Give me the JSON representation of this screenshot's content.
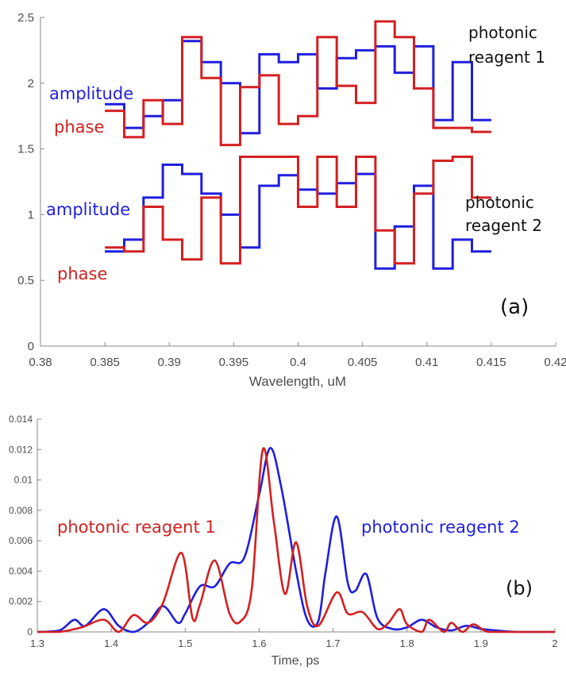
{
  "chart_data": [
    {
      "type": "line",
      "panel_label": "(a)",
      "xlabel": "Wavelength, uM",
      "ylabel": "",
      "xlim": [
        0.38,
        0.42
      ],
      "ylim": [
        0,
        2.5
      ],
      "x_ticks": [
        "0.38",
        "0.385",
        "0.39",
        "0.395",
        "0.4",
        "0.405",
        "0.41",
        "0.415",
        "0.42"
      ],
      "y_ticks": [
        "0",
        "0.5",
        "1",
        "1.5",
        "2",
        "2.5"
      ],
      "grid": false,
      "step_edges": [
        0.385,
        0.3865,
        0.388,
        0.3895,
        0.391,
        0.3925,
        0.394,
        0.3955,
        0.397,
        0.3985,
        0.4,
        0.4015,
        0.403,
        0.4045,
        0.406,
        0.4075,
        0.409,
        0.4105,
        0.412,
        0.4135,
        0.415
      ],
      "series": [
        {
          "group": "photonic reagent 1",
          "quantity": "amplitude",
          "color": "#1f1fdd",
          "values": [
            1.84,
            1.66,
            1.75,
            1.87,
            2.32,
            2.16,
            2.0,
            1.62,
            2.22,
            2.16,
            2.22,
            1.96,
            2.19,
            2.25,
            2.28,
            2.08,
            2.28,
            1.72,
            2.16,
            1.72
          ]
        },
        {
          "group": "photonic reagent 1",
          "quantity": "phase",
          "color": "#d42020",
          "values": [
            1.79,
            1.59,
            1.87,
            1.69,
            2.35,
            2.04,
            1.53,
            1.97,
            2.06,
            1.69,
            1.75,
            2.35,
            1.98,
            1.85,
            2.47,
            2.35,
            1.96,
            1.66,
            1.66,
            1.63
          ]
        },
        {
          "group": "photonic reagent 2",
          "quantity": "amplitude",
          "color": "#1f1fdd",
          "values": [
            0.72,
            0.81,
            1.13,
            1.38,
            1.31,
            1.16,
            1.0,
            0.75,
            1.22,
            1.3,
            1.19,
            1.16,
            1.24,
            1.31,
            0.59,
            0.91,
            1.22,
            0.59,
            0.81,
            0.72
          ]
        },
        {
          "group": "photonic reagent 2",
          "quantity": "phase",
          "color": "#d42020",
          "values": [
            0.75,
            0.72,
            1.06,
            0.81,
            0.66,
            1.13,
            0.63,
            1.44,
            1.44,
            1.44,
            1.06,
            1.44,
            1.06,
            1.44,
            0.88,
            0.63,
            1.16,
            1.41,
            1.44,
            1.13
          ]
        }
      ],
      "annotations": [
        {
          "text": "amplitude",
          "color": "#1f1fdd"
        },
        {
          "text": "phase",
          "color": "#d42020"
        },
        {
          "text": "photonic",
          "color": "#111111"
        },
        {
          "text": "reagent 1",
          "color": "#111111"
        },
        {
          "text": "amplitude",
          "color": "#1f1fdd"
        },
        {
          "text": "phase",
          "color": "#d42020"
        },
        {
          "text": "photonic",
          "color": "#111111"
        },
        {
          "text": "reagent 2",
          "color": "#111111"
        }
      ]
    },
    {
      "type": "line",
      "panel_label": "(b)",
      "xlabel": "Time, ps",
      "ylabel": "",
      "xlim": [
        1.3,
        2.0
      ],
      "ylim": [
        0,
        0.014
      ],
      "x_ticks": [
        "1.3",
        "1.4",
        "1.5",
        "1.6",
        "1.7",
        "1.8",
        "1.9",
        "2"
      ],
      "y_ticks": [
        "0",
        "0.002",
        "0.004",
        "0.006",
        "0.008",
        "0.01",
        "0.012",
        "0.014"
      ],
      "grid": false,
      "series": [
        {
          "name": "photonic reagent 2",
          "color": "#1f1fdd",
          "x": [
            1.3,
            1.33,
            1.35,
            1.365,
            1.39,
            1.41,
            1.43,
            1.45,
            1.47,
            1.49,
            1.5,
            1.52,
            1.54,
            1.56,
            1.58,
            1.6,
            1.615,
            1.63,
            1.65,
            1.665,
            1.68,
            1.69,
            1.705,
            1.72,
            1.73,
            1.745,
            1.76,
            1.78,
            1.8,
            1.82,
            1.84,
            1.86,
            1.88,
            1.9,
            1.92,
            1.95,
            2.0
          ],
          "y": [
            0.0,
            0.0001,
            0.0008,
            0.0004,
            0.0015,
            0.0004,
            0.0,
            0.0006,
            0.0017,
            0.0006,
            0.0012,
            0.003,
            0.003,
            0.0045,
            0.0049,
            0.009,
            0.0121,
            0.0095,
            0.004,
            0.0008,
            0.0007,
            0.004,
            0.0076,
            0.0032,
            0.0027,
            0.0038,
            0.0009,
            0.0002,
            0.0003,
            0.0008,
            0.0003,
            0.0001,
            0.0004,
            0.0002,
            0.0001,
            0.0,
            0.0
          ]
        },
        {
          "name": "photonic reagent 1",
          "color": "#d42020",
          "x": [
            1.3,
            1.33,
            1.36,
            1.39,
            1.41,
            1.43,
            1.45,
            1.47,
            1.495,
            1.51,
            1.52,
            1.54,
            1.56,
            1.575,
            1.59,
            1.605,
            1.62,
            1.635,
            1.65,
            1.665,
            1.68,
            1.705,
            1.72,
            1.74,
            1.76,
            1.775,
            1.79,
            1.8,
            1.82,
            1.83,
            1.85,
            1.86,
            1.875,
            1.89,
            1.91,
            1.95,
            2.0
          ],
          "y": [
            0.0,
            0.0,
            0.0003,
            0.0008,
            0.0,
            0.0011,
            0.0006,
            0.0019,
            0.0052,
            0.0009,
            0.0018,
            0.0047,
            0.0012,
            0.0007,
            0.0028,
            0.012,
            0.0072,
            0.0025,
            0.0059,
            0.0017,
            0.0004,
            0.0026,
            0.0012,
            0.0013,
            0.0002,
            0.0006,
            0.0015,
            0.0005,
            0.0,
            0.0008,
            0.0,
            0.0006,
            0.0,
            0.0005,
            0.0,
            0.0,
            0.0
          ]
        }
      ],
      "annotations": [
        {
          "text": "photonic reagent 1",
          "color": "#d42020"
        },
        {
          "text": "photonic reagent 2",
          "color": "#1f1fdd"
        }
      ]
    }
  ]
}
